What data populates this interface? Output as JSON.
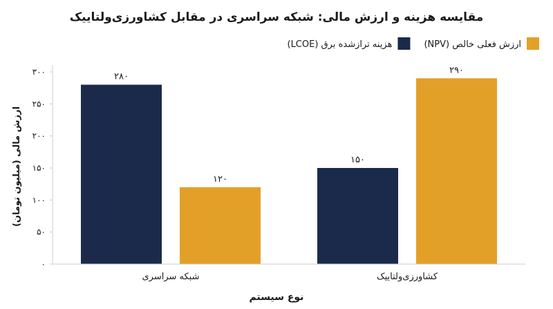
{
  "chart_data": {
    "type": "bar",
    "title": "مقایسه هزینه و ارزش مالی: شبکه سراسری در مقابل کشاورزی‌ولتاییک",
    "xlabel": "نوع سیستم",
    "ylabel": "ارزش مالی (میلیون تومان)",
    "categories": [
      "شبکه سراسری",
      "کشاورزی‌ولتاییک"
    ],
    "series": [
      {
        "name": "هزینه ترازشده برق (LCOE)",
        "color": "#1b2a4a",
        "values": [
          280,
          150
        ],
        "labels": [
          "۲۸۰",
          "۱۵۰"
        ]
      },
      {
        "name": "ارزش فعلی خالص (NPV)",
        "color": "#e3a029",
        "values": [
          120,
          290
        ],
        "labels": [
          "۱۲۰",
          "۲۹۰"
        ]
      }
    ],
    "ylim": [
      0,
      300
    ],
    "yticks": [
      0,
      50,
      100,
      150,
      200,
      250,
      300
    ],
    "ytick_labels": [
      "۰",
      "۵۰",
      "۱۰۰",
      "۱۵۰",
      "۲۰۰",
      "۲۵۰",
      "۳۰۰"
    ],
    "grid": false,
    "legend_position": "top-right"
  }
}
